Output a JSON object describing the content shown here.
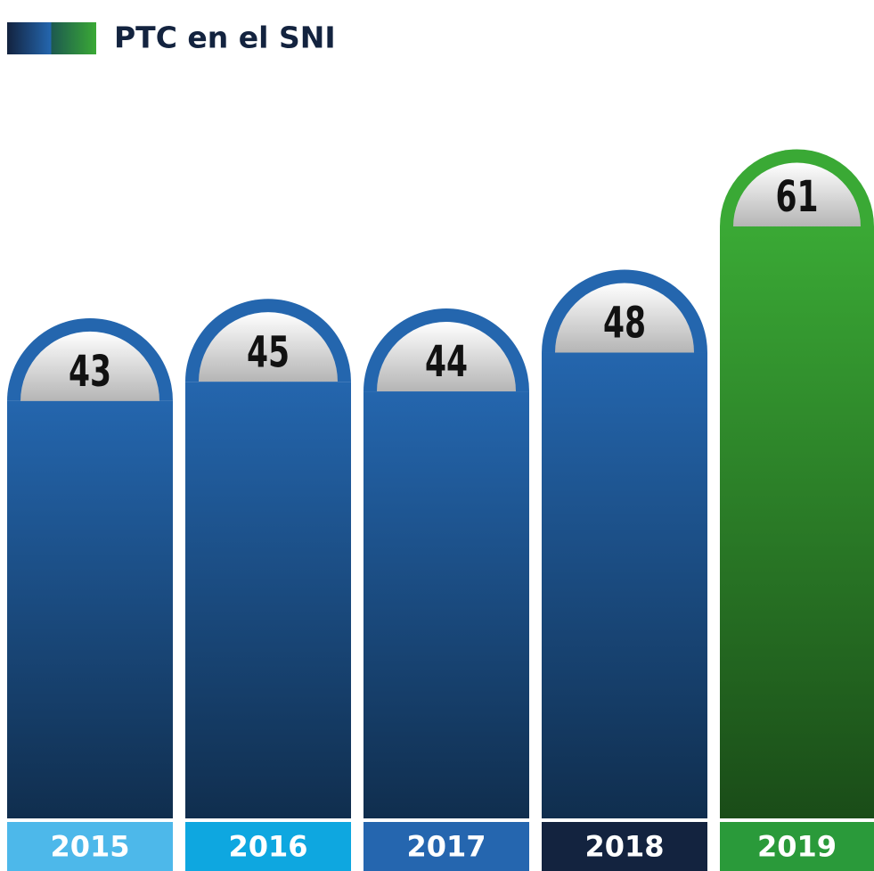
{
  "chart_data": {
    "type": "bar",
    "title": "PTC en el SNI",
    "categories": [
      "2015",
      "2016",
      "2017",
      "2018",
      "2019"
    ],
    "values": [
      43,
      45,
      44,
      48,
      61
    ],
    "colors": [
      "#2466ae",
      "#2466ae",
      "#2466ae",
      "#2466ae",
      "#3aa935"
    ],
    "label_colors": [
      "#4db8ea",
      "#0ea7e0",
      "#2566af",
      "#13233f",
      "#2a9a3a"
    ]
  }
}
